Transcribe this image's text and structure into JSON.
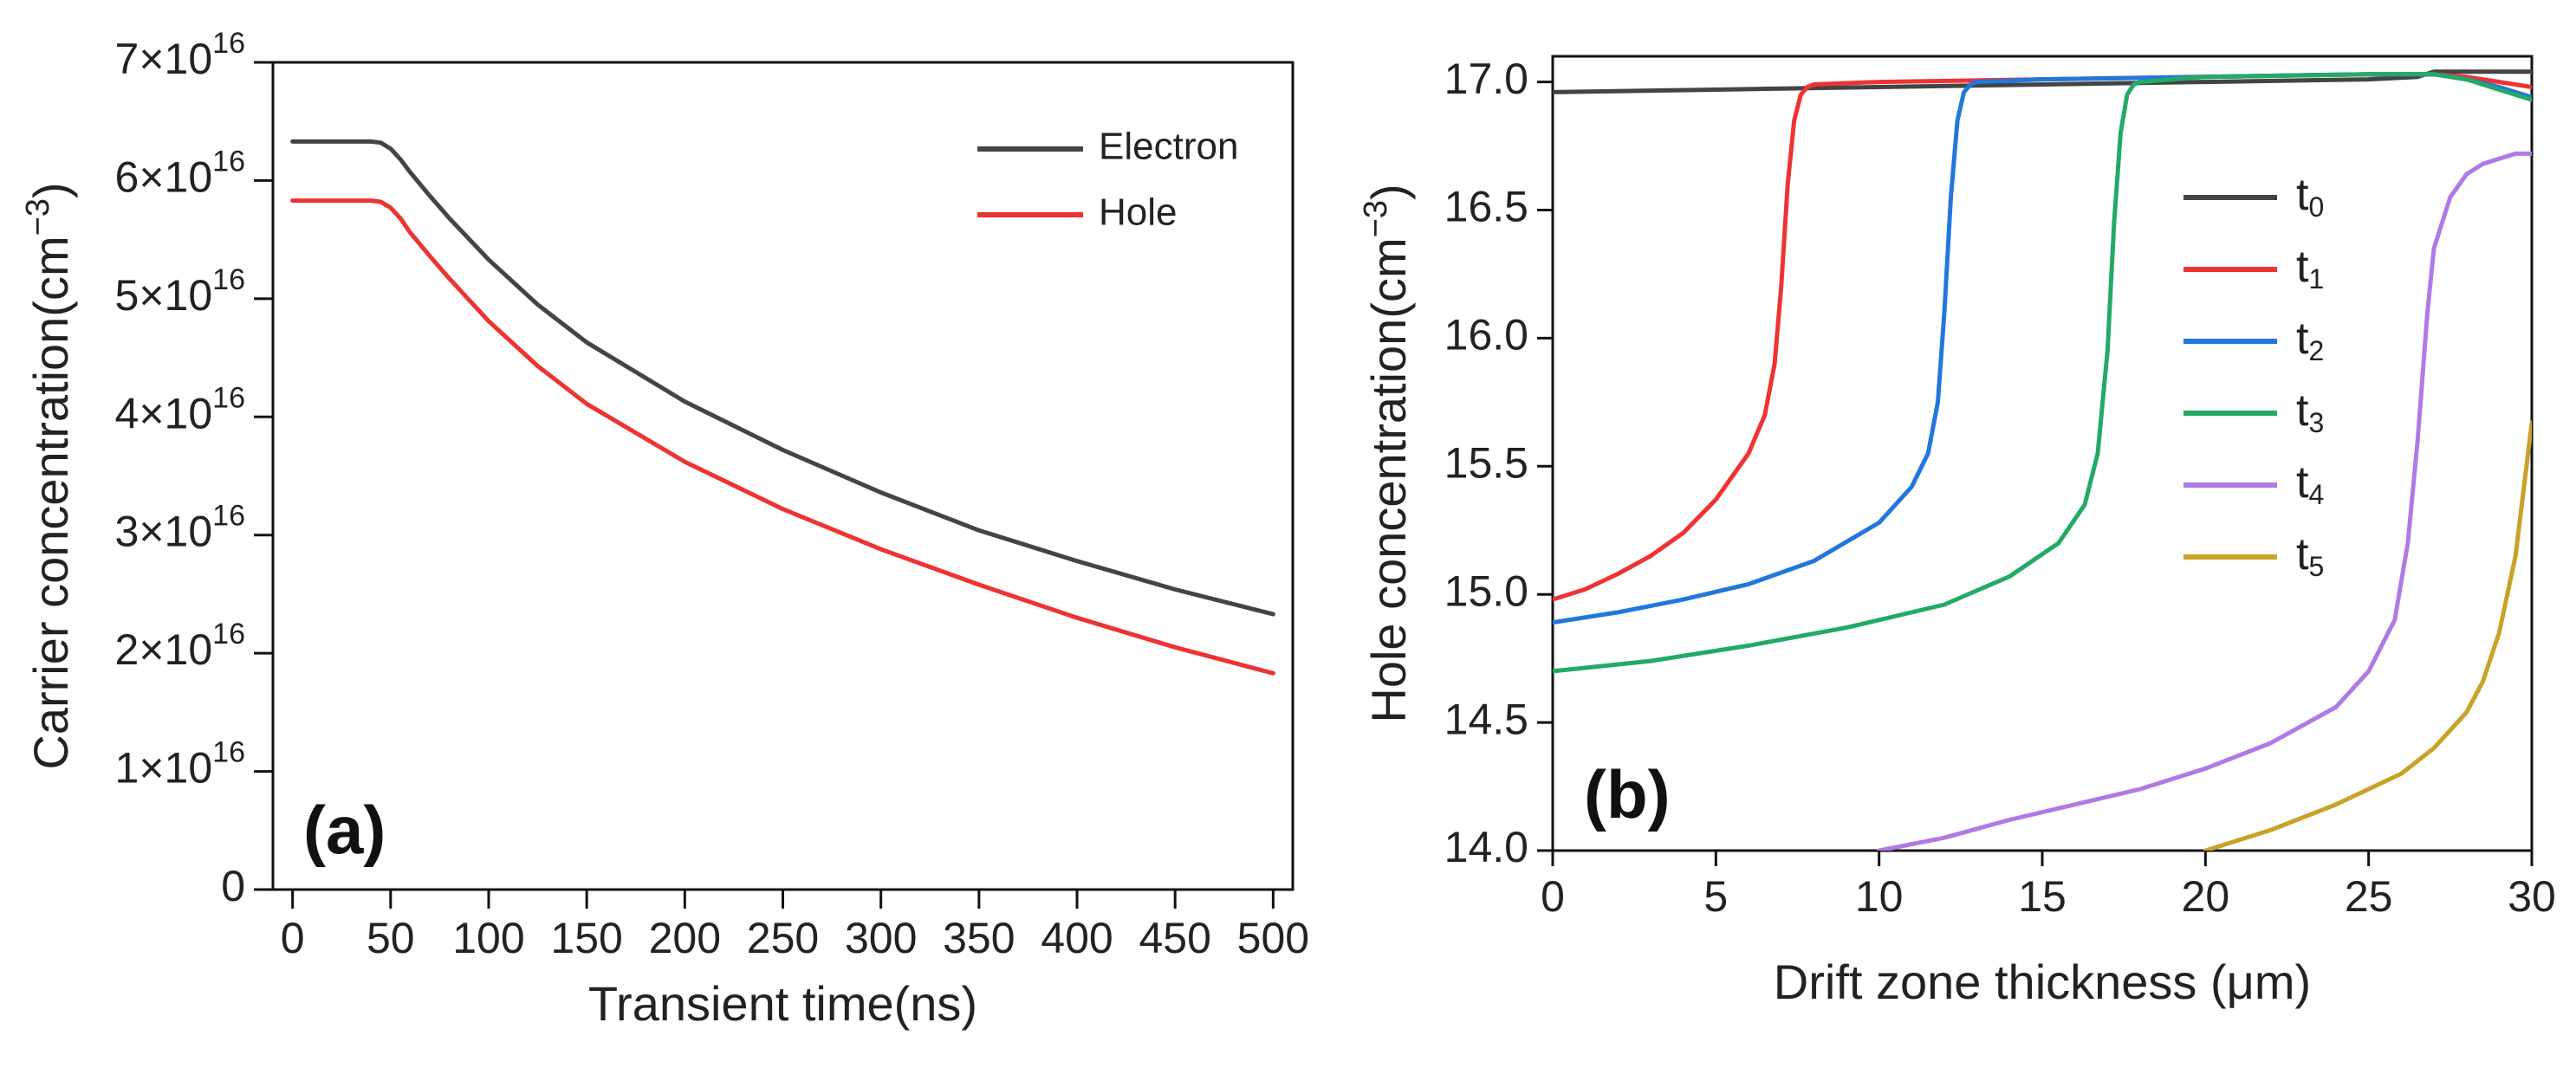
{
  "chart_data": [
    {
      "type": "line",
      "panel_label": "(a)",
      "xlabel": "Transient time(ns)",
      "ylabel": "Carrier concentration(cm⁻³)",
      "xlim": [
        -10,
        510
      ],
      "ylim": [
        0,
        7e+16
      ],
      "xticks": [
        0,
        50,
        100,
        150,
        200,
        250,
        300,
        350,
        400,
        450,
        500
      ],
      "xtick_labels": [
        "0",
        "50",
        "100",
        "150",
        "200",
        "250",
        "300",
        "350",
        "400",
        "450",
        "500"
      ],
      "yticks": [
        0,
        1e+16,
        2e+16,
        3e+16,
        4e+16,
        5e+16,
        6e+16,
        7e+16
      ],
      "ytick_labels": [
        "0",
        "1×10¹⁶",
        "2×10¹⁶",
        "3×10¹⁶",
        "4×10¹⁶",
        "5×10¹⁶",
        "6×10¹⁶",
        "7×10¹⁶"
      ],
      "legend_position": "top-right",
      "series": [
        {
          "name": "Electron",
          "color": "#444444",
          "x": [
            0,
            40,
            45,
            50,
            55,
            60,
            70,
            80,
            100,
            125,
            150,
            200,
            250,
            300,
            350,
            400,
            450,
            500
          ],
          "y": [
            6.33e+16,
            6.33e+16,
            6.32e+16,
            6.27e+16,
            6.18e+16,
            6.07e+16,
            5.87e+16,
            5.68e+16,
            5.33e+16,
            4.95e+16,
            4.63e+16,
            4.13e+16,
            3.72e+16,
            3.36e+16,
            3.04e+16,
            2.78e+16,
            2.54e+16,
            2.33e+16
          ]
        },
        {
          "name": "Hole",
          "color": "#ee3333",
          "x": [
            0,
            40,
            45,
            50,
            55,
            60,
            70,
            80,
            100,
            125,
            150,
            200,
            250,
            300,
            350,
            400,
            450,
            500
          ],
          "y": [
            5.83e+16,
            5.83e+16,
            5.82e+16,
            5.77e+16,
            5.68e+16,
            5.56e+16,
            5.36e+16,
            5.17e+16,
            4.81e+16,
            4.43e+16,
            4.11e+16,
            3.62e+16,
            3.22e+16,
            2.88e+16,
            2.58e+16,
            2.3e+16,
            2.05e+16,
            1.83e+16
          ]
        }
      ]
    },
    {
      "type": "line",
      "panel_label": "(b)",
      "xlabel": "Drift zone thickness (μm)",
      "ylabel": "Hole concentration(cm⁻³)",
      "xlim": [
        0,
        30
      ],
      "ylim": [
        14.0,
        17.1
      ],
      "xticks": [
        0,
        5,
        10,
        15,
        20,
        25,
        30
      ],
      "xtick_labels": [
        "0",
        "5",
        "10",
        "15",
        "20",
        "25",
        "30"
      ],
      "yticks": [
        14.0,
        14.5,
        15.0,
        15.5,
        16.0,
        16.5,
        17.0
      ],
      "ytick_labels": [
        "14.0",
        "14.5",
        "15.0",
        "15.5",
        "16.0",
        "16.5",
        "17.0"
      ],
      "legend_position": "center-right",
      "series": [
        {
          "name": "t0",
          "label_main": "t",
          "label_sub": "0",
          "color": "#444444",
          "x": [
            0,
            5,
            10,
            15,
            20,
            25,
            26.5,
            27,
            28,
            29,
            30
          ],
          "y": [
            16.96,
            16.97,
            16.98,
            16.99,
            17.0,
            17.01,
            17.02,
            17.04,
            17.04,
            17.04,
            17.04
          ]
        },
        {
          "name": "t1",
          "label_main": "t",
          "label_sub": "1",
          "color": "#ee3333",
          "x": [
            0,
            1,
            2,
            3,
            4,
            5,
            6,
            6.5,
            6.8,
            7.0,
            7.2,
            7.4,
            7.6,
            7.8,
            8.0,
            10,
            15,
            20,
            25,
            27,
            28,
            29,
            30
          ],
          "y": [
            14.98,
            15.02,
            15.08,
            15.15,
            15.24,
            15.37,
            15.55,
            15.7,
            15.9,
            16.2,
            16.6,
            16.85,
            16.95,
            16.98,
            16.99,
            17.0,
            17.01,
            17.02,
            17.03,
            17.03,
            17.02,
            17.0,
            16.98
          ]
        },
        {
          "name": "t2",
          "label_main": "t",
          "label_sub": "2",
          "color": "#2277dd",
          "x": [
            0,
            2,
            4,
            6,
            8,
            10,
            11,
            11.5,
            11.8,
            12.0,
            12.2,
            12.4,
            12.6,
            12.8,
            13.0,
            15,
            20,
            25,
            27,
            28,
            29,
            30
          ],
          "y": [
            14.89,
            14.93,
            14.98,
            15.04,
            15.13,
            15.28,
            15.42,
            15.55,
            15.75,
            16.1,
            16.55,
            16.85,
            16.96,
            16.99,
            17.0,
            17.01,
            17.02,
            17.03,
            17.03,
            17.01,
            16.98,
            16.94
          ]
        },
        {
          "name": "t3",
          "label_main": "t",
          "label_sub": "3",
          "color": "#22aa66",
          "x": [
            0,
            3,
            6,
            9,
            12,
            14,
            15.5,
            16.3,
            16.7,
            17.0,
            17.2,
            17.4,
            17.6,
            17.8,
            18.0,
            20,
            25,
            27,
            28,
            29,
            30
          ],
          "y": [
            14.7,
            14.74,
            14.8,
            14.87,
            14.96,
            15.07,
            15.2,
            15.35,
            15.55,
            15.95,
            16.45,
            16.8,
            16.95,
            16.99,
            17.0,
            17.02,
            17.03,
            17.03,
            17.01,
            16.97,
            16.93
          ]
        },
        {
          "name": "t4",
          "label_main": "t",
          "label_sub": "4",
          "color": "#b07ae6",
          "x": [
            10,
            12,
            14,
            16,
            18,
            20,
            22,
            24,
            25,
            25.8,
            26.2,
            26.5,
            26.8,
            27.0,
            27.5,
            28,
            28.5,
            29,
            29.5,
            30
          ],
          "y": [
            14.0,
            14.05,
            14.12,
            14.18,
            14.24,
            14.32,
            14.42,
            14.56,
            14.7,
            14.9,
            15.2,
            15.6,
            16.1,
            16.35,
            16.55,
            16.64,
            16.68,
            16.7,
            16.72,
            16.72
          ]
        },
        {
          "name": "t5",
          "label_main": "t",
          "label_sub": "5",
          "color": "#c9a227",
          "x": [
            20,
            22,
            24,
            26,
            27,
            28,
            28.5,
            29,
            29.5,
            30
          ],
          "y": [
            14.0,
            14.08,
            14.18,
            14.3,
            14.4,
            14.54,
            14.66,
            14.85,
            15.15,
            15.67
          ]
        }
      ]
    }
  ]
}
